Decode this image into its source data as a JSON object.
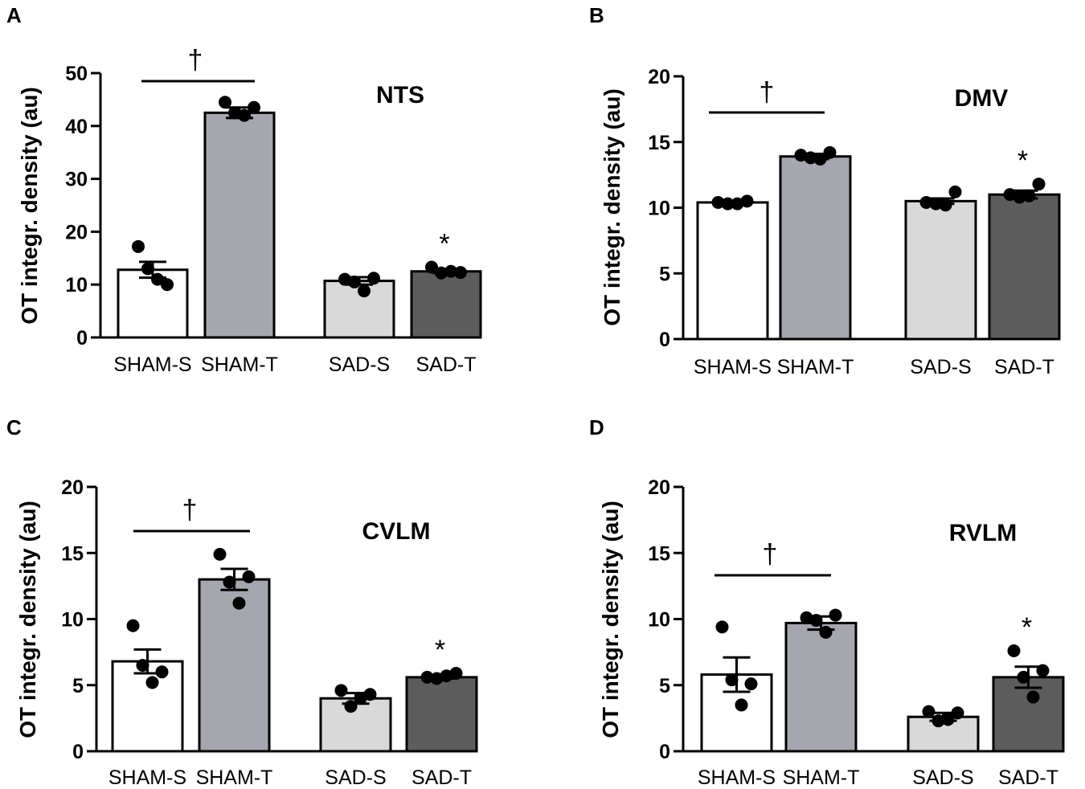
{
  "chart_data": [
    {
      "type": "bar",
      "panel": "A",
      "title": "NTS",
      "ylabel": "OT integr. density (au)",
      "ylim": [
        0,
        50
      ],
      "yticks": [
        0,
        10,
        20,
        30,
        40,
        50
      ],
      "categories": [
        "SHAM-S",
        "SHAM-T",
        "SAD-S",
        "SAD-T"
      ],
      "colors": [
        "#ffffff",
        "#a6a6ae",
        "#d9d9d9",
        "#5d5d5d"
      ],
      "values": [
        12.8,
        42.5,
        10.7,
        12.5
      ],
      "errors": [
        1.5,
        1.0,
        0.7,
        0.3
      ],
      "points": [
        [
          17.2,
          13.0,
          11.0,
          10.0
        ],
        [
          44.5,
          42.5,
          42.0,
          43.5
        ],
        [
          11.0,
          10.5,
          8.8,
          11.2
        ],
        [
          13.3,
          12.2,
          12.5,
          12.3
        ]
      ],
      "dagger": "†",
      "star": "*"
    },
    {
      "type": "bar",
      "panel": "B",
      "title": "DMV",
      "ylabel": "OT integr. density (au)",
      "ylim": [
        0,
        20
      ],
      "yticks": [
        0,
        5,
        10,
        15,
        20
      ],
      "categories": [
        "SHAM-S",
        "SHAM-T",
        "SAD-S",
        "SAD-T"
      ],
      "colors": [
        "#ffffff",
        "#a6a6ae",
        "#d9d9d9",
        "#5d5d5d"
      ],
      "values": [
        10.4,
        13.9,
        10.5,
        11.0
      ],
      "errors": [
        0.1,
        0.2,
        0.2,
        0.3
      ],
      "points": [
        [
          10.4,
          10.3,
          10.3,
          10.5
        ],
        [
          14.0,
          13.8,
          13.7,
          14.2
        ],
        [
          10.4,
          10.3,
          10.2,
          11.2
        ],
        [
          11.0,
          10.8,
          10.9,
          11.8
        ]
      ],
      "dagger": "†",
      "star": "*"
    },
    {
      "type": "bar",
      "panel": "C",
      "title": "CVLM",
      "ylabel": "OT integr. density (au)",
      "ylim": [
        0,
        20
      ],
      "yticks": [
        0,
        5,
        10,
        15,
        20
      ],
      "categories": [
        "SHAM-S",
        "SHAM-T",
        "SAD-S",
        "SAD-T"
      ],
      "colors": [
        "#ffffff",
        "#a6a6ae",
        "#d9d9d9",
        "#5d5d5d"
      ],
      "values": [
        6.8,
        13.0,
        4.0,
        5.6
      ],
      "errors": [
        0.9,
        0.8,
        0.4,
        0.1
      ],
      "points": [
        [
          9.5,
          6.5,
          5.2,
          6.0
        ],
        [
          14.9,
          12.8,
          11.2,
          13.2
        ],
        [
          4.6,
          3.4,
          4.0,
          4.3
        ],
        [
          5.6,
          5.5,
          5.7,
          5.9
        ]
      ],
      "dagger": "†",
      "star": "*"
    },
    {
      "type": "bar",
      "panel": "D",
      "title": "RVLM",
      "ylabel": "OT integr. density (au)",
      "ylim": [
        0,
        20
      ],
      "yticks": [
        0,
        5,
        10,
        15,
        20
      ],
      "categories": [
        "SHAM-S",
        "SHAM-T",
        "SAD-S",
        "SAD-T"
      ],
      "colors": [
        "#ffffff",
        "#a6a6ae",
        "#d9d9d9",
        "#5d5d5d"
      ],
      "values": [
        5.8,
        9.7,
        2.6,
        5.6
      ],
      "errors": [
        1.3,
        0.5,
        0.3,
        0.8
      ],
      "points": [
        [
          9.4,
          5.4,
          3.5,
          5.1
        ],
        [
          10.1,
          9.9,
          9.0,
          10.3
        ],
        [
          3.0,
          2.3,
          2.4,
          2.9
        ],
        [
          7.6,
          5.6,
          4.1,
          6.1
        ]
      ],
      "dagger": "†",
      "star": "*"
    }
  ]
}
